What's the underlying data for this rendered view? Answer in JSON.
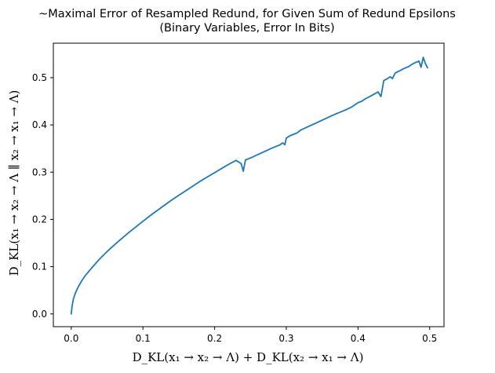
{
  "chart_data": {
    "type": "line",
    "title": "~Maximal Error of Resampled Redund, for Given Sum of Redund Epsilons",
    "subtitle": "(Binary Variables, Error In Bits)",
    "xlabel": "D_KL(x₁ → x₂ → Λ) + D_KL(x₂ → x₁ → Λ)",
    "ylabel": "D_KL(x₁ → x₂ → Λ ∥ x₂ → x₁ → Λ)",
    "xlim": [
      -0.025,
      0.52
    ],
    "ylim": [
      -0.027,
      0.573
    ],
    "xticks": [
      0.0,
      0.1,
      0.2,
      0.3,
      0.4,
      0.5
    ],
    "yticks": [
      0.0,
      0.1,
      0.2,
      0.3,
      0.4,
      0.5
    ],
    "xtick_labels": [
      "0.0",
      "0.1",
      "0.2",
      "0.3",
      "0.4",
      "0.5"
    ],
    "ytick_labels": [
      "0.0",
      "0.1",
      "0.2",
      "0.3",
      "0.4",
      "0.5"
    ],
    "grid": false,
    "colors": {
      "series": "#1f77b4"
    },
    "series": [
      {
        "x": [
          0.0,
          0.001,
          0.003,
          0.006,
          0.01,
          0.015,
          0.02,
          0.03,
          0.04,
          0.05,
          0.06,
          0.07,
          0.08,
          0.09,
          0.1,
          0.11,
          0.12,
          0.13,
          0.14,
          0.15,
          0.16,
          0.17,
          0.18,
          0.19,
          0.2,
          0.21,
          0.22,
          0.23,
          0.237,
          0.24,
          0.243,
          0.25,
          0.26,
          0.27,
          0.28,
          0.29,
          0.295,
          0.298,
          0.3,
          0.305,
          0.31,
          0.315,
          0.32,
          0.33,
          0.34,
          0.35,
          0.36,
          0.37,
          0.38,
          0.39,
          0.395,
          0.4,
          0.405,
          0.41,
          0.42,
          0.428,
          0.432,
          0.436,
          0.44,
          0.445,
          0.448,
          0.452,
          0.456,
          0.46,
          0.465,
          0.47,
          0.475,
          0.48,
          0.485,
          0.488,
          0.491,
          0.494,
          0.497
        ],
        "values": [
          0.0,
          0.015,
          0.032,
          0.045,
          0.058,
          0.071,
          0.082,
          0.1,
          0.117,
          0.132,
          0.146,
          0.159,
          0.172,
          0.184,
          0.196,
          0.208,
          0.219,
          0.23,
          0.241,
          0.251,
          0.261,
          0.271,
          0.281,
          0.29,
          0.299,
          0.308,
          0.317,
          0.325,
          0.318,
          0.302,
          0.326,
          0.33,
          0.337,
          0.344,
          0.351,
          0.357,
          0.362,
          0.358,
          0.372,
          0.377,
          0.38,
          0.383,
          0.389,
          0.396,
          0.403,
          0.41,
          0.417,
          0.424,
          0.43,
          0.437,
          0.442,
          0.447,
          0.45,
          0.455,
          0.463,
          0.47,
          0.46,
          0.494,
          0.497,
          0.502,
          0.498,
          0.51,
          0.513,
          0.516,
          0.52,
          0.523,
          0.528,
          0.532,
          0.535,
          0.522,
          0.543,
          0.53,
          0.521
        ]
      }
    ]
  }
}
